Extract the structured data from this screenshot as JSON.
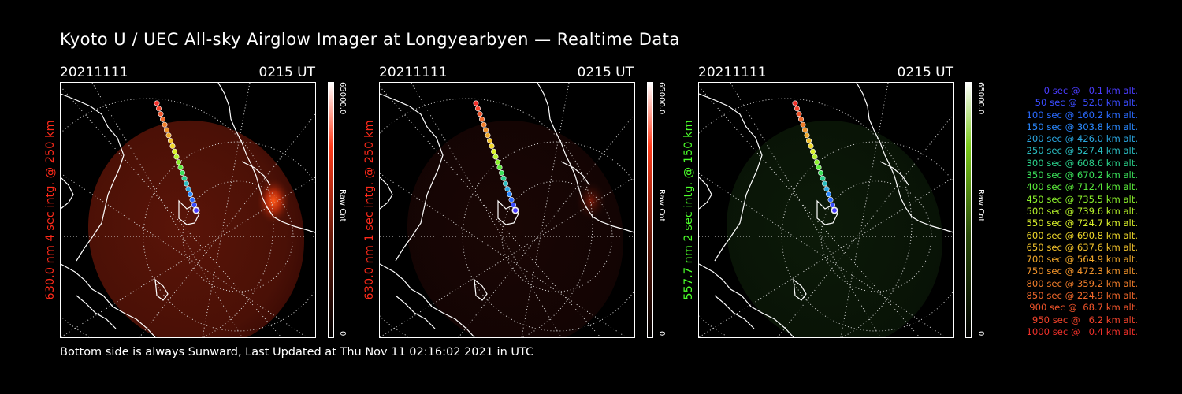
{
  "title": "Kyoto U / UEC All-sky Airglow Imager at Longyearbyen — Realtime Data",
  "footer": "Bottom side is always Sunward, Last Updated at Thu Nov 11 02:16:02 2021 in UTC",
  "panels": [
    {
      "date": "20211111",
      "time": "0215 UT",
      "side_label": "630.0 nm 4 sec intg. @ 250 km",
      "label_color": "#ff2a1a",
      "cbar_max": "65000.0",
      "cbar_min": "0",
      "cbar_unit": "Raw Cnt",
      "colormap": "red"
    },
    {
      "date": "20211111",
      "time": "0215 UT",
      "side_label": "630.0 nm 1 sec intg. @ 250 km",
      "label_color": "#ff2a1a",
      "cbar_max": "65000.0",
      "cbar_min": "0",
      "cbar_unit": "Raw Cnt",
      "colormap": "red"
    },
    {
      "date": "20211111",
      "time": "0215 UT",
      "side_label": "557.7 nm 2 sec intg. @ 150 km",
      "label_color": "#4cff2a",
      "cbar_max": "65000.0",
      "cbar_min": "0",
      "cbar_unit": "Raw Cnt",
      "colormap": "green"
    }
  ],
  "legend": [
    {
      "text": "0 sec @   0.1 km alt.",
      "color": "#4a3cff"
    },
    {
      "text": "50 sec @  52.0 km alt.",
      "color": "#3a4cff"
    },
    {
      "text": "100 sec @ 160.2 km alt.",
      "color": "#2a6aff"
    },
    {
      "text": "150 sec @ 303.8 km alt.",
      "color": "#2a88ff"
    },
    {
      "text": "200 sec @ 426.0 km alt.",
      "color": "#2aa6e0"
    },
    {
      "text": "250 sec @ 527.4 km alt.",
      "color": "#2abcc0"
    },
    {
      "text": "300 sec @ 608.6 km alt.",
      "color": "#2ad08a"
    },
    {
      "text": "350 sec @ 670.2 km alt.",
      "color": "#3ae05a"
    },
    {
      "text": "400 sec @ 712.4 km alt.",
      "color": "#5aec3a"
    },
    {
      "text": "450 sec @ 735.5 km alt.",
      "color": "#8af02a"
    },
    {
      "text": "500 sec @ 739.6 km alt.",
      "color": "#b4f02a"
    },
    {
      "text": "550 sec @ 724.7 km alt.",
      "color": "#daf02a"
    },
    {
      "text": "600 sec @ 690.8 km alt.",
      "color": "#f0d82a"
    },
    {
      "text": "650 sec @ 637.6 km alt.",
      "color": "#f0c02a"
    },
    {
      "text": "700 sec @ 564.9 km alt.",
      "color": "#f0a82a"
    },
    {
      "text": "750 sec @ 472.3 km alt.",
      "color": "#f0922a"
    },
    {
      "text": "800 sec @ 359.2 km alt.",
      "color": "#f07c2a"
    },
    {
      "text": "850 sec @ 224.9 km alt.",
      "color": "#f0682a"
    },
    {
      "text": "900 sec @  68.7 km alt.",
      "color": "#f0542a"
    },
    {
      "text": "950 sec @   6.2 km alt.",
      "color": "#f0422a"
    },
    {
      "text": "1000 sec @   0.4 km alt.",
      "color": "#f0302a"
    }
  ]
}
